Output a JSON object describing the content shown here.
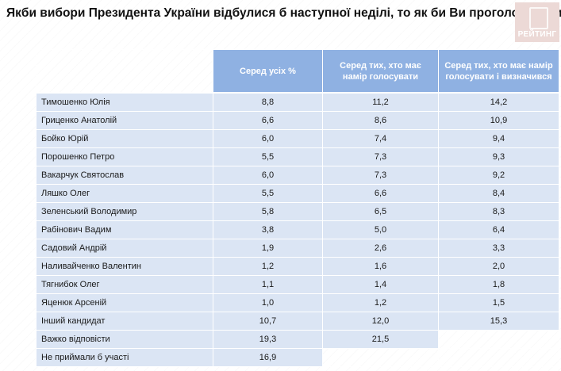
{
  "title": "Якби вибори Президента України відбулися б наступної неділі, то як би Ви проголосували?",
  "logo_text": "РЕЙТИНГ",
  "colors": {
    "header_bg": "#8fb1e2",
    "cell_bg": "#dbe5f4",
    "logo_bg": "#ecd9d6"
  },
  "chart_data": {
    "type": "table",
    "columns": [
      "Серед усіх %",
      "Серед тих, хто має намір голосувати",
      "Серед тих, хто має намір голосувати і визначився"
    ],
    "rows": [
      {
        "name": "Тимошенко Юлія",
        "values": [
          "8,8",
          "11,2",
          "14,2"
        ]
      },
      {
        "name": "Гриценко Анатолій",
        "values": [
          "6,6",
          "8,6",
          "10,9"
        ]
      },
      {
        "name": "Бойко Юрій",
        "values": [
          "6,0",
          "7,4",
          "9,4"
        ]
      },
      {
        "name": "Порошенко Петро",
        "values": [
          "5,5",
          "7,3",
          "9,3"
        ]
      },
      {
        "name": "Вакарчук Святослав",
        "values": [
          "6,0",
          "7,3",
          "9,2"
        ]
      },
      {
        "name": "Ляшко Олег",
        "values": [
          "5,5",
          "6,6",
          "8,4"
        ]
      },
      {
        "name": "Зеленський Володимир",
        "values": [
          "5,8",
          "6,5",
          "8,3"
        ]
      },
      {
        "name": "Рабінович Вадим",
        "values": [
          "3,8",
          "5,0",
          "6,4"
        ]
      },
      {
        "name": "Садовий Андрій",
        "values": [
          "1,9",
          "2,6",
          "3,3"
        ]
      },
      {
        "name": "Наливайченко Валентин",
        "values": [
          "1,2",
          "1,6",
          "2,0"
        ]
      },
      {
        "name": "Тягнибок Олег",
        "values": [
          "1,1",
          "1,4",
          "1,8"
        ]
      },
      {
        "name": "Яценюк Арсеній",
        "values": [
          "1,0",
          "1,2",
          "1,5"
        ]
      },
      {
        "name": "Інший кандидат",
        "values": [
          "10,7",
          "12,0",
          "15,3"
        ]
      },
      {
        "name": "Важко відповісти",
        "values": [
          "19,3",
          "21,5",
          ""
        ]
      },
      {
        "name": "Не приймали б участі",
        "values": [
          "16,9",
          "",
          ""
        ]
      }
    ]
  }
}
